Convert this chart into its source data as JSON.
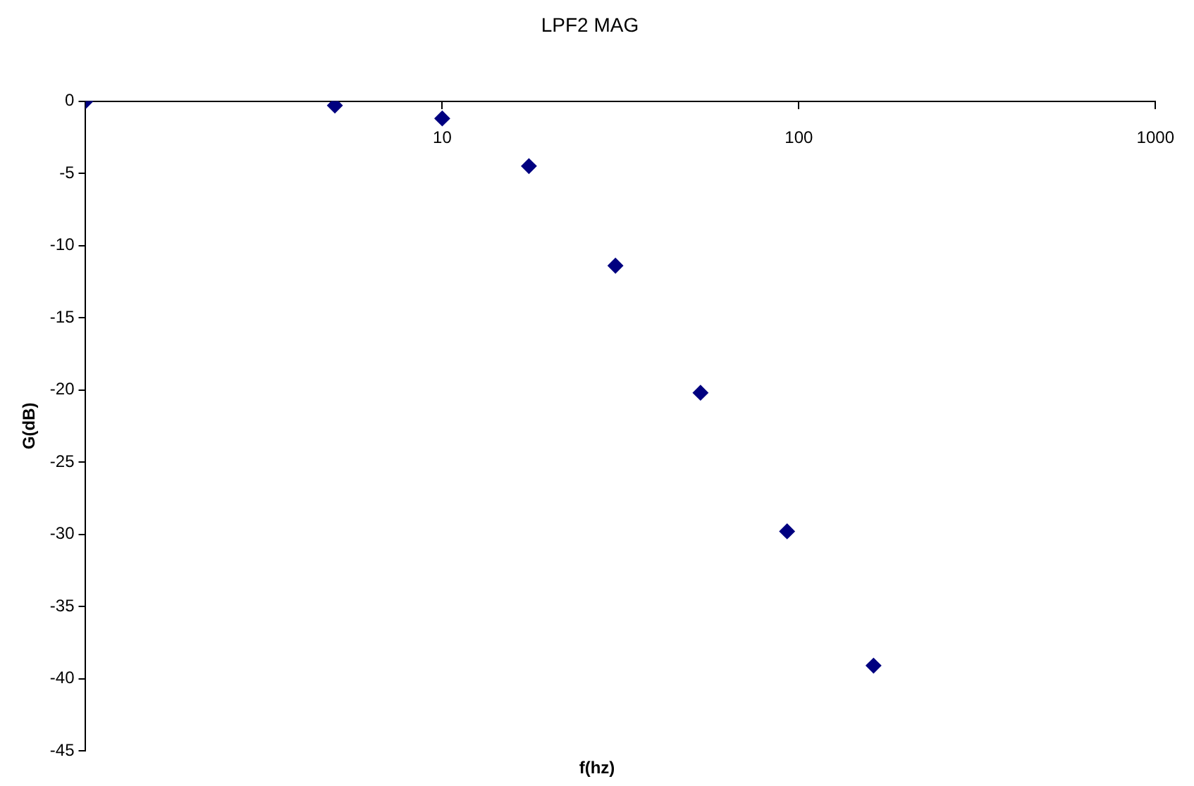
{
  "chart_data": {
    "type": "scatter",
    "title": "LPF2 MAG",
    "xlabel": "f(hz)",
    "ylabel": "G(dB)",
    "x": [
      1,
      5,
      10,
      17.5,
      30.6,
      53,
      92.7,
      162
    ],
    "values": [
      0,
      -0.3,
      -1.2,
      -4.5,
      -11.4,
      -20.2,
      -29.8,
      -39.1
    ],
    "color": "#000080",
    "marker": "diamond",
    "log": "x",
    "xlim": [
      1,
      1000
    ],
    "xticks": [
      10,
      100,
      1000
    ],
    "ylim": [
      -45,
      0
    ],
    "yticks": [
      0,
      -5,
      -10,
      -15,
      -20,
      -25,
      -30,
      -35,
      -40,
      -45
    ],
    "grid": false,
    "legend": false
  }
}
